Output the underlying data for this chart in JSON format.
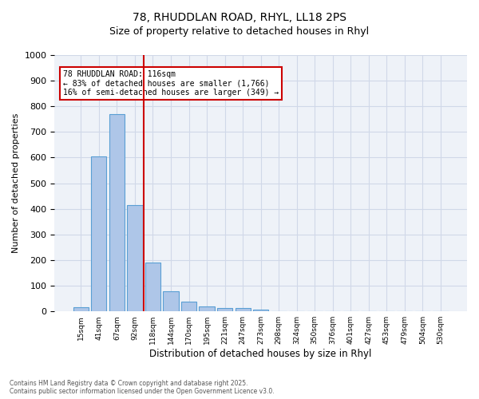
{
  "title1": "78, RHUDDLAN ROAD, RHYL, LL18 2PS",
  "title2": "Size of property relative to detached houses in Rhyl",
  "xlabel": "Distribution of detached houses by size in Rhyl",
  "ylabel": "Number of detached properties",
  "bar_labels": [
    "15sqm",
    "41sqm",
    "67sqm",
    "92sqm",
    "118sqm",
    "144sqm",
    "170sqm",
    "195sqm",
    "221sqm",
    "247sqm",
    "273sqm",
    "298sqm",
    "324sqm",
    "350sqm",
    "376sqm",
    "401sqm",
    "427sqm",
    "453sqm",
    "479sqm",
    "504sqm",
    "530sqm"
  ],
  "bar_values": [
    15,
    605,
    770,
    415,
    190,
    78,
    37,
    18,
    13,
    13,
    7,
    0,
    0,
    0,
    0,
    0,
    0,
    0,
    0,
    0,
    0
  ],
  "bar_color": "#aec6e8",
  "bar_edge_color": "#5a9fd4",
  "vline_x": 3.5,
  "vline_color": "#cc0000",
  "annotation_text": "78 RHUDDLAN ROAD: 116sqm\n← 83% of detached houses are smaller (1,766)\n16% of semi-detached houses are larger (349) →",
  "annotation_box_color": "#cc0000",
  "ylim": [
    0,
    1000
  ],
  "yticks": [
    0,
    100,
    200,
    300,
    400,
    500,
    600,
    700,
    800,
    900,
    1000
  ],
  "grid_color": "#d0d8e8",
  "background_color": "#eef2f8",
  "footer1": "Contains HM Land Registry data © Crown copyright and database right 2025.",
  "footer2": "Contains public sector information licensed under the Open Government Licence v3.0."
}
